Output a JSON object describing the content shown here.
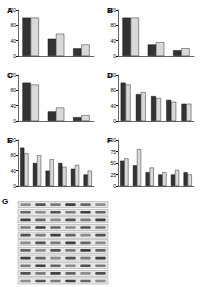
{
  "chart_data": [
    {
      "type": "bar",
      "title": "A",
      "categories": [
        null,
        null,
        null
      ],
      "series": [
        {
          "color": "#333333",
          "values": [
            100,
            45,
            20
          ]
        },
        {
          "color": "#d9d9d9",
          "values": [
            100,
            58,
            30
          ]
        }
      ],
      "ylim": [
        0,
        120
      ],
      "yticks": [
        0,
        40,
        80,
        120
      ],
      "grid": false
    },
    {
      "type": "bar",
      "title": "B",
      "categories": [
        null,
        null,
        null
      ],
      "series": [
        {
          "color": "#333333",
          "values": [
            100,
            30,
            15
          ]
        },
        {
          "color": "#d9d9d9",
          "values": [
            100,
            36,
            20
          ]
        }
      ],
      "ylim": [
        0,
        120
      ],
      "yticks": [
        0,
        40,
        80,
        120
      ],
      "grid": false
    },
    {
      "type": "bar",
      "title": "C",
      "categories": [
        null,
        null,
        null
      ],
      "series": [
        {
          "color": "#333333",
          "values": [
            100,
            25,
            10
          ]
        },
        {
          "color": "#d9d9d9",
          "values": [
            95,
            35,
            15
          ]
        }
      ],
      "ylim": [
        0,
        120
      ],
      "yticks": [
        0,
        40,
        80,
        120
      ],
      "grid": false
    },
    {
      "type": "bar",
      "title": "D",
      "categories": [
        null,
        null,
        null,
        null,
        null
      ],
      "series": [
        {
          "color": "#333333",
          "values": [
            100,
            70,
            65,
            55,
            45
          ]
        },
        {
          "color": "#d9d9d9",
          "values": [
            95,
            75,
            60,
            50,
            45
          ]
        }
      ],
      "ylim": [
        0,
        120
      ],
      "yticks": [
        0,
        40,
        80,
        120
      ],
      "grid": false
    },
    {
      "type": "bar",
      "title": "E",
      "categories": [
        null,
        null,
        null,
        null,
        null,
        null
      ],
      "series": [
        {
          "color": "#333333",
          "values": [
            100,
            60,
            40,
            60,
            45,
            30
          ]
        },
        {
          "color": "#d9d9d9",
          "values": [
            85,
            80,
            70,
            50,
            55,
            40
          ]
        }
      ],
      "ylim": [
        0,
        120
      ],
      "yticks": [
        0,
        40,
        80,
        120
      ],
      "grid": false
    },
    {
      "type": "bar",
      "title": "F",
      "categories": [
        null,
        null,
        null,
        null,
        null,
        null
      ],
      "series": [
        {
          "color": "#333333",
          "values": [
            55,
            45,
            30,
            25,
            25,
            30
          ]
        },
        {
          "color": "#d9d9d9",
          "values": [
            60,
            80,
            40,
            30,
            35,
            25
          ]
        }
      ],
      "ylim": [
        0,
        100
      ],
      "yticks": [
        0,
        25,
        50,
        75,
        100
      ],
      "grid": false
    }
  ],
  "blot": {
    "title": "G",
    "lanes": 6,
    "rows": 11
  }
}
